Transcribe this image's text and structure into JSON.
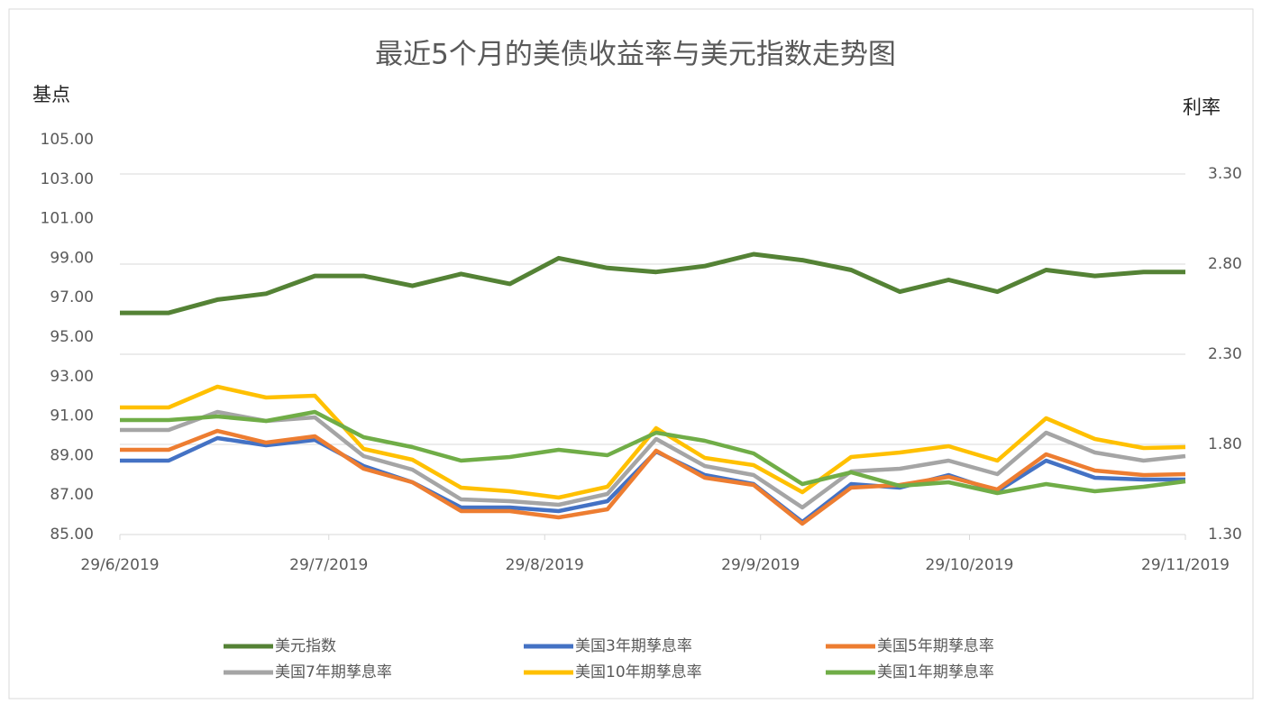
{
  "chart_data": {
    "type": "line",
    "title": "最近5个月的美债收益率与美元指数走势图",
    "y_label": "基点",
    "y2_label": "利率",
    "x": [
      "29/6/2019",
      "6/7/2019",
      "13/7/2019",
      "20/7/2019",
      "27/7/2019",
      "3/8/2019",
      "10/8/2019",
      "17/8/2019",
      "24/8/2019",
      "31/8/2019",
      "7/9/2019",
      "14/9/2019",
      "21/9/2019",
      "28/9/2019",
      "5/10/2019",
      "12/10/2019",
      "19/10/2019",
      "26/10/2019",
      "2/11/2019",
      "9/11/2019",
      "16/11/2019",
      "23/11/2019",
      "29/11/2019"
    ],
    "xlim": [
      "29/6/2019",
      "29/11/2019"
    ],
    "xticks": [
      "29/6/2019",
      "29/7/2019",
      "29/8/2019",
      "29/9/2019",
      "29/10/2019",
      "29/11/2019"
    ],
    "ylim": [
      85,
      105
    ],
    "yticks": [
      {
        "value": 85,
        "label": "85.00"
      },
      {
        "value": 87,
        "label": "87.00"
      },
      {
        "value": 89,
        "label": "89.00"
      },
      {
        "value": 91,
        "label": "91.00"
      },
      {
        "value": 93,
        "label": "93.00"
      },
      {
        "value": 95,
        "label": "95.00"
      },
      {
        "value": 97,
        "label": "97.00"
      },
      {
        "value": 99,
        "label": "99.00"
      },
      {
        "value": 101,
        "label": "101.00"
      },
      {
        "value": 103,
        "label": "103.00"
      },
      {
        "value": 105,
        "label": "105.00"
      }
    ],
    "y2lim": [
      1.3,
      3.49
    ],
    "y2ticks": [
      {
        "value": 1.3,
        "label": "1.30"
      },
      {
        "value": 1.8,
        "label": "1.80"
      },
      {
        "value": 2.3,
        "label": "2.30"
      },
      {
        "value": 2.8,
        "label": "2.80"
      },
      {
        "value": 3.3,
        "label": "3.30"
      }
    ],
    "grid": true,
    "legend": "bottom",
    "series": [
      {
        "name": "美元指数",
        "color": "#548235",
        "values": [
          96.23,
          96.23,
          96.9,
          97.2,
          98.1,
          98.1,
          97.6,
          98.2,
          97.7,
          99.0,
          98.5,
          98.3,
          98.6,
          99.2,
          98.9,
          98.4,
          97.3,
          97.9,
          97.3,
          98.4,
          98.1,
          98.3,
          98.3
        ]
      },
      {
        "name": "美国3年期孳息率",
        "color": "#4472c4",
        "axis": "y2",
        "values": [
          1.71,
          1.71,
          1.835,
          1.795,
          1.825,
          1.68,
          1.59,
          1.45,
          1.45,
          1.43,
          1.485,
          1.76,
          1.63,
          1.58,
          1.37,
          1.58,
          1.56,
          1.63,
          1.54,
          1.71,
          1.615,
          1.605,
          1.605
        ]
      },
      {
        "name": "美国5年期孳息率",
        "color": "#ed7d31",
        "axis": "y2",
        "values": [
          1.77,
          1.77,
          1.875,
          1.81,
          1.845,
          1.665,
          1.59,
          1.43,
          1.43,
          1.395,
          1.44,
          1.765,
          1.615,
          1.575,
          1.36,
          1.56,
          1.575,
          1.62,
          1.55,
          1.745,
          1.655,
          1.63,
          1.635
        ]
      },
      {
        "name": "美国7年期孳息率",
        "color": "#a5a5a5",
        "axis": "y2",
        "values": [
          1.88,
          1.88,
          1.98,
          1.93,
          1.95,
          1.735,
          1.66,
          1.495,
          1.485,
          1.465,
          1.525,
          1.83,
          1.68,
          1.63,
          1.45,
          1.65,
          1.665,
          1.71,
          1.635,
          1.865,
          1.755,
          1.71,
          1.735
        ]
      },
      {
        "name": "美国10年期孳息率",
        "color": "#ffc000",
        "axis": "y2",
        "values": [
          2.005,
          2.005,
          2.12,
          2.06,
          2.07,
          1.775,
          1.715,
          1.56,
          1.54,
          1.505,
          1.565,
          1.89,
          1.725,
          1.685,
          1.535,
          1.73,
          1.755,
          1.79,
          1.71,
          1.945,
          1.83,
          1.78,
          1.785
        ]
      },
      {
        "name": "美国1年期孳息率",
        "color": "#70ad47",
        "axis": "y2",
        "values": [
          1.935,
          1.935,
          1.955,
          1.93,
          1.98,
          1.84,
          1.785,
          1.71,
          1.73,
          1.77,
          1.74,
          1.865,
          1.82,
          1.75,
          1.58,
          1.645,
          1.57,
          1.59,
          1.53,
          1.58,
          1.54,
          1.565,
          1.595
        ]
      }
    ]
  }
}
